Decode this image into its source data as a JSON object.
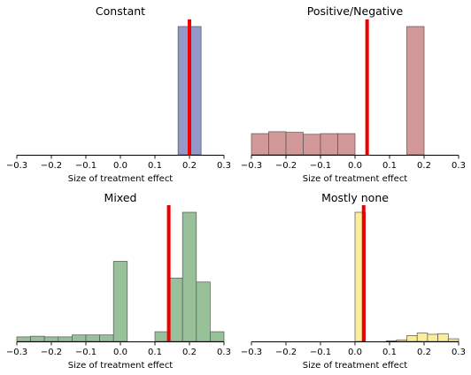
{
  "chart_data": [
    {
      "type": "bar",
      "title": "Constant",
      "xlabel": "Size of treatment effect",
      "xlim": [
        -0.3,
        0.3
      ],
      "xticks": [
        "−0.3",
        "−0.2",
        "−0.1",
        "0.0",
        "0.1",
        "0.2",
        "0.3"
      ],
      "y_axis_visible": false,
      "bin_width": 0.0667,
      "bars": [
        {
          "x": 0.167,
          "height": 1.0
        }
      ],
      "fill_color": "#9499c9",
      "edge_color": "#555555",
      "reference_line": {
        "x": 0.2,
        "color": "#ee0000"
      }
    },
    {
      "type": "bar",
      "title": "Positive/Negative",
      "xlabel": "Size of treatment effect",
      "xlim": [
        -0.3,
        0.3
      ],
      "xticks": [
        "−0.3",
        "−0.2",
        "−0.1",
        "0.0",
        "0.1",
        "0.2",
        "0.3"
      ],
      "y_axis_visible": false,
      "bin_width": 0.05,
      "bars": [
        {
          "x": -0.3,
          "height": 0.165
        },
        {
          "x": -0.25,
          "height": 0.18
        },
        {
          "x": -0.2,
          "height": 0.175
        },
        {
          "x": -0.15,
          "height": 0.16
        },
        {
          "x": -0.1,
          "height": 0.165
        },
        {
          "x": -0.05,
          "height": 0.165
        },
        {
          "x": 0.15,
          "height": 1.0
        }
      ],
      "fill_color": "#d39898",
      "edge_color": "#555555",
      "reference_line": {
        "x": 0.035,
        "color": "#ee0000"
      }
    },
    {
      "type": "bar",
      "title": "Mixed",
      "xlabel": "Size of treatment effect",
      "xlim": [
        -0.3,
        0.3
      ],
      "xticks": [
        "−0.3",
        "−0.2",
        "−0.1",
        "0.0",
        "0.1",
        "0.2",
        "0.3"
      ],
      "y_axis_visible": false,
      "bin_width": 0.04,
      "bars": [
        {
          "x": -0.3,
          "height": 0.035
        },
        {
          "x": -0.26,
          "height": 0.04
        },
        {
          "x": -0.22,
          "height": 0.035
        },
        {
          "x": -0.18,
          "height": 0.035
        },
        {
          "x": -0.14,
          "height": 0.05
        },
        {
          "x": -0.1,
          "height": 0.05
        },
        {
          "x": -0.06,
          "height": 0.05
        },
        {
          "x": -0.02,
          "height": 0.62
        },
        {
          "x": 0.1,
          "height": 0.075
        },
        {
          "x": 0.14,
          "height": 0.49
        },
        {
          "x": 0.18,
          "height": 1.0
        },
        {
          "x": 0.22,
          "height": 0.46
        },
        {
          "x": 0.26,
          "height": 0.075
        }
      ],
      "fill_color": "#99c199",
      "edge_color": "#555555",
      "reference_line": {
        "x": 0.14,
        "color": "#ee0000"
      }
    },
    {
      "type": "bar",
      "title": "Mostly none",
      "xlabel": "Size of treatment effect",
      "xlim": [
        -0.3,
        0.3
      ],
      "xticks": [
        "−0.3",
        "−0.2",
        "−0.1",
        "0.0",
        "0.1",
        "0.2",
        "0.3"
      ],
      "y_axis_visible": false,
      "bin_width": 0.03,
      "bars": [
        {
          "x": 0.0,
          "height": 1.0
        },
        {
          "x": 0.09,
          "height": 0.004
        },
        {
          "x": 0.12,
          "height": 0.012
        },
        {
          "x": 0.15,
          "height": 0.045
        },
        {
          "x": 0.18,
          "height": 0.065
        },
        {
          "x": 0.21,
          "height": 0.055
        },
        {
          "x": 0.24,
          "height": 0.06
        },
        {
          "x": 0.27,
          "height": 0.02
        }
      ],
      "fill_color": "#fbee9a",
      "edge_color": "#555555",
      "reference_line": {
        "x": 0.025,
        "color": "#ee0000"
      }
    }
  ]
}
